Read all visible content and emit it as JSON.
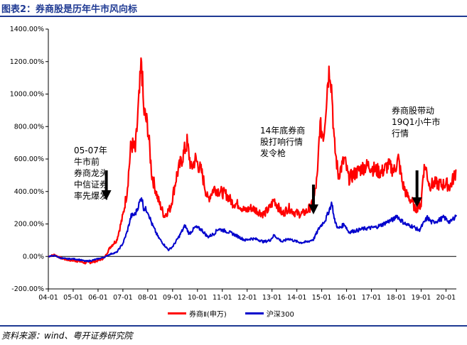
{
  "header": {
    "title": "图表2：券商股是历年牛市风向标"
  },
  "footer": {
    "source": "资料来源：wind、粤开证券研究院"
  },
  "annotations": [
    {
      "id": "a1",
      "text": "05-07年\n牛市前\n券商龙头\n中信证券\n率先爆发",
      "arrow_x": "2006-05",
      "arrow_top": 280,
      "arrow_bottom": 240
    },
    {
      "id": "a2",
      "text": "14年底券商\n股打响行情\n发令枪",
      "arrow_x": "2014-09",
      "arrow_top": 300,
      "arrow_bottom": 260
    },
    {
      "id": "a3",
      "text": "券商股带动\n19Q1小牛市\n行情",
      "arrow_x": "2018-11",
      "arrow_top": 290,
      "arrow_bottom": 240
    }
  ],
  "colors": {
    "series1": "#ff0000",
    "series2": "#0000cc",
    "title": "#1f3a93",
    "axis": "#000000"
  },
  "chart_data": {
    "type": "line",
    "title": "",
    "xlabel": "",
    "ylabel": "",
    "ylim": [
      -200,
      1400
    ],
    "yticks": [
      -200,
      0,
      200,
      400,
      600,
      800,
      1000,
      1200,
      1400
    ],
    "ytick_labels": [
      "-200.00%",
      "0.00%",
      "200.00%",
      "400.00%",
      "600.00%",
      "800.00%",
      "1000.00%",
      "1200.00%",
      "1400.00%"
    ],
    "xticks": [
      "04-01",
      "05-01",
      "06-01",
      "07-01",
      "08-01",
      "09-01",
      "10-01",
      "11-01",
      "12-01",
      "13-01",
      "14-01",
      "15-01",
      "16-01",
      "17-01",
      "18-01",
      "19-01",
      "20-01"
    ],
    "x_start": "2004-01",
    "x_end": "2020-06",
    "legend_position": "bottom",
    "grid": false,
    "series": [
      {
        "name": "券商Ⅱ(申万)",
        "color": "#ff0000",
        "points": [
          [
            "2004-01",
            0
          ],
          [
            "2004-04",
            10
          ],
          [
            "2004-07",
            -10
          ],
          [
            "2004-10",
            -20
          ],
          [
            "2005-01",
            -25
          ],
          [
            "2005-04",
            -30
          ],
          [
            "2005-07",
            -40
          ],
          [
            "2005-10",
            -35
          ],
          [
            "2006-01",
            -25
          ],
          [
            "2006-04",
            -10
          ],
          [
            "2006-07",
            60
          ],
          [
            "2006-10",
            100
          ],
          [
            "2007-01",
            250
          ],
          [
            "2007-03",
            400
          ],
          [
            "2007-05",
            700
          ],
          [
            "2007-07",
            650
          ],
          [
            "2007-09",
            1000
          ],
          [
            "2007-10",
            1210
          ],
          [
            "2007-11",
            900
          ],
          [
            "2008-01",
            800
          ],
          [
            "2008-03",
            500
          ],
          [
            "2008-06",
            350
          ],
          [
            "2008-09",
            250
          ],
          [
            "2008-12",
            300
          ],
          [
            "2009-03",
            500
          ],
          [
            "2009-06",
            620
          ],
          [
            "2009-08",
            700
          ],
          [
            "2009-10",
            540
          ],
          [
            "2009-12",
            600
          ],
          [
            "2010-03",
            520
          ],
          [
            "2010-06",
            350
          ],
          [
            "2010-09",
            420
          ],
          [
            "2010-12",
            400
          ],
          [
            "2011-03",
            380
          ],
          [
            "2011-06",
            330
          ],
          [
            "2011-09",
            320
          ],
          [
            "2011-12",
            280
          ],
          [
            "2012-03",
            300
          ],
          [
            "2012-06",
            280
          ],
          [
            "2012-09",
            260
          ],
          [
            "2012-12",
            300
          ],
          [
            "2013-02",
            350
          ],
          [
            "2013-06",
            260
          ],
          [
            "2013-09",
            300
          ],
          [
            "2013-12",
            270
          ],
          [
            "2014-03",
            260
          ],
          [
            "2014-06",
            280
          ],
          [
            "2014-09",
            330
          ],
          [
            "2014-11",
            500
          ],
          [
            "2014-12",
            800
          ],
          [
            "2015-02",
            750
          ],
          [
            "2015-04",
            1100
          ],
          [
            "2015-05",
            1170
          ],
          [
            "2015-06",
            1000
          ],
          [
            "2015-07",
            700
          ],
          [
            "2015-09",
            500
          ],
          [
            "2015-12",
            600
          ],
          [
            "2016-02",
            480
          ],
          [
            "2016-06",
            520
          ],
          [
            "2016-09",
            550
          ],
          [
            "2016-12",
            560
          ],
          [
            "2017-03",
            530
          ],
          [
            "2017-06",
            520
          ],
          [
            "2017-09",
            560
          ],
          [
            "2017-12",
            530
          ],
          [
            "2018-02",
            600
          ],
          [
            "2018-04",
            450
          ],
          [
            "2018-06",
            380
          ],
          [
            "2018-09",
            330
          ],
          [
            "2018-10",
            290
          ],
          [
            "2019-01",
            320
          ],
          [
            "2019-02",
            520
          ],
          [
            "2019-03",
            560
          ],
          [
            "2019-05",
            440
          ],
          [
            "2019-08",
            450
          ],
          [
            "2019-11",
            440
          ],
          [
            "2020-01",
            450
          ],
          [
            "2020-03",
            430
          ],
          [
            "2020-06",
            530
          ]
        ]
      },
      {
        "name": "沪深300",
        "color": "#0000cc",
        "points": [
          [
            "2004-01",
            0
          ],
          [
            "2004-04",
            5
          ],
          [
            "2004-07",
            -10
          ],
          [
            "2004-10",
            -15
          ],
          [
            "2005-01",
            -15
          ],
          [
            "2005-04",
            -20
          ],
          [
            "2005-07",
            -30
          ],
          [
            "2005-10",
            -25
          ],
          [
            "2006-01",
            -15
          ],
          [
            "2006-04",
            -5
          ],
          [
            "2006-07",
            15
          ],
          [
            "2006-10",
            25
          ],
          [
            "2007-01",
            80
          ],
          [
            "2007-03",
            150
          ],
          [
            "2007-05",
            250
          ],
          [
            "2007-07",
            260
          ],
          [
            "2007-09",
            330
          ],
          [
            "2007-10",
            370
          ],
          [
            "2007-11",
            300
          ],
          [
            "2008-01",
            280
          ],
          [
            "2008-03",
            200
          ],
          [
            "2008-06",
            120
          ],
          [
            "2008-09",
            70
          ],
          [
            "2008-11",
            40
          ],
          [
            "2009-01",
            60
          ],
          [
            "2009-04",
            120
          ],
          [
            "2009-07",
            190
          ],
          [
            "2009-09",
            140
          ],
          [
            "2009-12",
            180
          ],
          [
            "2010-03",
            165
          ],
          [
            "2010-06",
            120
          ],
          [
            "2010-09",
            140
          ],
          [
            "2010-11",
            170
          ],
          [
            "2011-03",
            155
          ],
          [
            "2011-06",
            140
          ],
          [
            "2011-09",
            120
          ],
          [
            "2011-12",
            100
          ],
          [
            "2012-03",
            110
          ],
          [
            "2012-06",
            105
          ],
          [
            "2012-09",
            90
          ],
          [
            "2012-12",
            100
          ],
          [
            "2013-02",
            130
          ],
          [
            "2013-06",
            90
          ],
          [
            "2013-09",
            110
          ],
          [
            "2013-12",
            95
          ],
          [
            "2014-03",
            85
          ],
          [
            "2014-06",
            90
          ],
          [
            "2014-09",
            105
          ],
          [
            "2014-12",
            180
          ],
          [
            "2015-03",
            230
          ],
          [
            "2015-05",
            300
          ],
          [
            "2015-06",
            330
          ],
          [
            "2015-07",
            230
          ],
          [
            "2015-09",
            170
          ],
          [
            "2015-12",
            200
          ],
          [
            "2016-02",
            150
          ],
          [
            "2016-06",
            160
          ],
          [
            "2016-09",
            170
          ],
          [
            "2016-12",
            175
          ],
          [
            "2017-03",
            180
          ],
          [
            "2017-06",
            195
          ],
          [
            "2017-09",
            215
          ],
          [
            "2017-12",
            230
          ],
          [
            "2018-01",
            255
          ],
          [
            "2018-03",
            225
          ],
          [
            "2018-06",
            195
          ],
          [
            "2018-09",
            185
          ],
          [
            "2018-12",
            160
          ],
          [
            "2019-02",
            200
          ],
          [
            "2019-04",
            240
          ],
          [
            "2019-06",
            210
          ],
          [
            "2019-09",
            220
          ],
          [
            "2019-12",
            240
          ],
          [
            "2020-03",
            210
          ],
          [
            "2020-06",
            255
          ]
        ]
      }
    ]
  }
}
